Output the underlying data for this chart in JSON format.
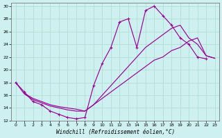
{
  "title": "",
  "xlabel": "Windchill (Refroidissement éolien,°C)",
  "ylabel": "",
  "background_color": "#cff0f0",
  "grid_color": "#aaddcc",
  "line_color": "#990099",
  "xlim": [
    -0.5,
    23.5
  ],
  "ylim": [
    12,
    30.5
  ],
  "xticks": [
    0,
    1,
    2,
    3,
    4,
    5,
    6,
    7,
    8,
    9,
    10,
    11,
    12,
    13,
    14,
    15,
    16,
    17,
    18,
    19,
    20,
    21,
    22,
    23
  ],
  "yticks": [
    12,
    14,
    16,
    18,
    20,
    22,
    24,
    26,
    28,
    30
  ],
  "curve1_x": [
    0,
    1,
    2,
    3,
    4,
    5,
    6,
    7,
    8,
    9,
    10,
    11,
    12,
    13,
    14,
    15,
    16,
    17,
    18,
    19,
    20,
    21,
    22
  ],
  "curve1_y": [
    18,
    16.5,
    15,
    14.5,
    13.5,
    13,
    12.5,
    12.3,
    12.5,
    17.5,
    21,
    23.5,
    27.5,
    28,
    23.5,
    29.3,
    30,
    28.5,
    27,
    25,
    24,
    22,
    21.7
  ],
  "curve2_x": [
    1,
    2,
    3,
    4,
    5,
    6,
    7,
    8,
    14,
    15,
    16,
    17,
    18,
    19,
    20,
    21,
    22,
    23
  ],
  "curve2_y": [
    16.3,
    15.5,
    15.0,
    14.5,
    14.2,
    14.0,
    13.8,
    13.5,
    19.5,
    20.5,
    21.5,
    22.0,
    23.0,
    23.5,
    24.5,
    25.0,
    22.2,
    21.8
  ],
  "curve3_x": [
    0,
    1,
    2,
    3,
    4,
    5,
    6,
    7,
    8,
    9,
    10,
    11,
    12,
    13,
    14,
    15,
    16,
    17,
    18,
    19,
    20,
    21,
    22,
    23
  ],
  "curve3_y": [
    18,
    16.2,
    15.3,
    14.8,
    14.3,
    14.0,
    13.7,
    13.5,
    13.5,
    14.5,
    16.0,
    17.5,
    19.0,
    20.5,
    22.0,
    23.5,
    24.5,
    25.5,
    26.5,
    27.0,
    25.0,
    24.0,
    22.2,
    21.8
  ]
}
